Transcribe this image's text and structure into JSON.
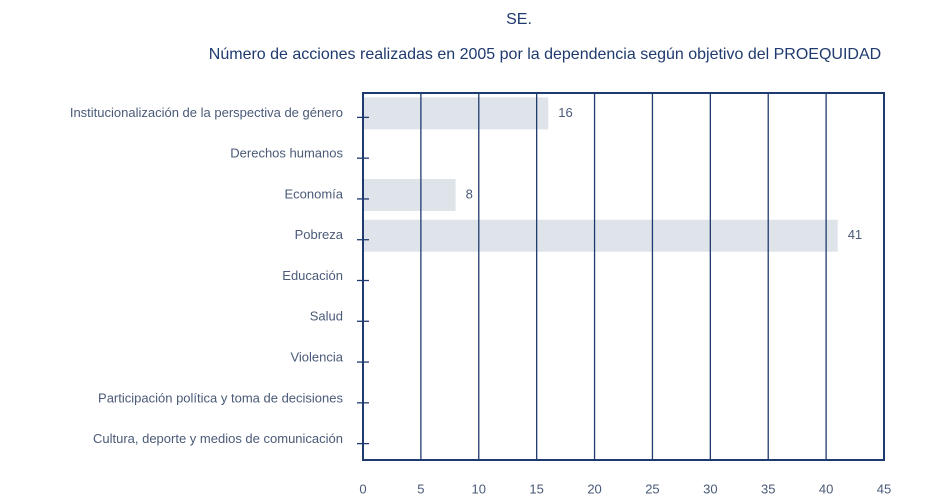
{
  "chart_data": {
    "type": "barh",
    "title": "SE.",
    "subtitle": "Número de acciones realizadas en 2005 por la dependencia según objetivo del PROEQUIDAD",
    "categories": [
      "Institucionalización de la perspectiva de género",
      "Derechos humanos",
      "Economía",
      "Pobreza",
      "Educación",
      "Salud",
      "Violencia",
      "Participación política y toma de decisiones",
      "Cultura, deporte y medios de comunicación"
    ],
    "values": [
      16,
      0,
      8,
      41,
      0,
      0,
      0,
      0,
      0
    ],
    "value_labels": [
      "16",
      null,
      "8",
      "41",
      null,
      null,
      null,
      null,
      null
    ],
    "color": "#dfe4eb",
    "xlim": [
      0,
      45
    ],
    "xticks": [
      0,
      5,
      10,
      15,
      20,
      25,
      30,
      35,
      40,
      45
    ],
    "grid": true
  }
}
